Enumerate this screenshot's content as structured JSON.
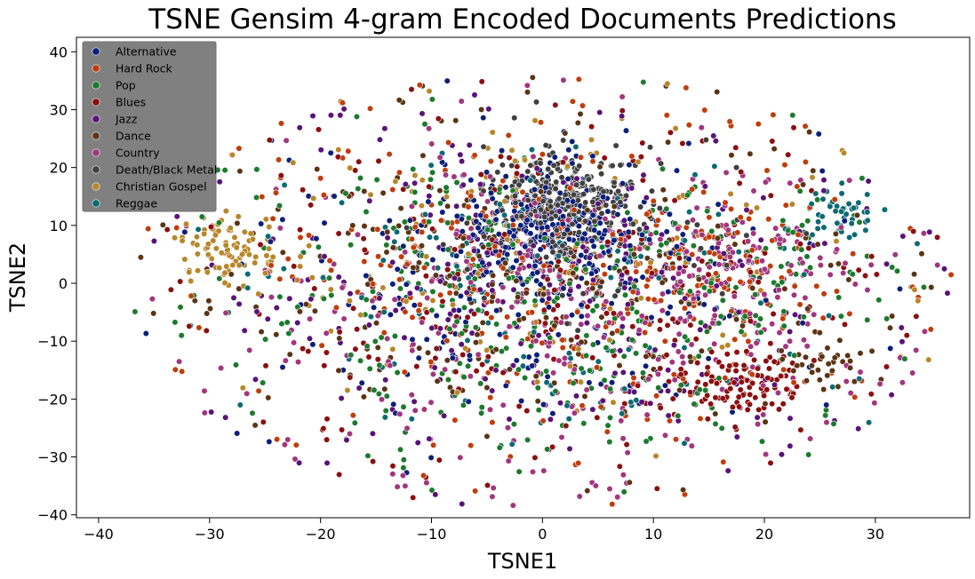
{
  "chart_data": {
    "type": "scatter",
    "title": "TSNE Gensim 4-gram Encoded Documents Predictions",
    "xlabel": "TSNE1",
    "ylabel": "TSNE2",
    "xlim": [
      -42,
      38.5
    ],
    "ylim": [
      -40.5,
      42.5
    ],
    "xticks": [
      -40,
      -30,
      -20,
      -10,
      0,
      10,
      20,
      30
    ],
    "yticks": [
      -40,
      -30,
      -20,
      -10,
      0,
      10,
      20,
      30,
      40
    ],
    "grid": false,
    "legend_position": "top-left",
    "series": [
      {
        "name": "Alternative",
        "color": "#0b1f7a",
        "clusters": [
          {
            "cx": 1,
            "cy": 10,
            "sx": 4,
            "sy": 5,
            "n": 240
          },
          {
            "cx": -1,
            "cy": 0,
            "sx": 12,
            "sy": 13,
            "n": 220
          }
        ]
      },
      {
        "name": "Hard Rock",
        "color": "#c03d0b",
        "clusters": [
          {
            "cx": 0,
            "cy": 0,
            "sx": 15,
            "sy": 15,
            "n": 300
          },
          {
            "cx": 15,
            "cy": 3,
            "sx": 6,
            "sy": 7,
            "n": 80
          }
        ]
      },
      {
        "name": "Pop",
        "color": "#1c7a2c",
        "clusters": [
          {
            "cx": -2,
            "cy": -3,
            "sx": 13,
            "sy": 14,
            "n": 330
          },
          {
            "cx": 20,
            "cy": 0,
            "sx": 5,
            "sy": 8,
            "n": 70
          }
        ]
      },
      {
        "name": "Blues",
        "color": "#8b0f0f",
        "clusters": [
          {
            "cx": 19,
            "cy": -18,
            "sx": 2.5,
            "sy": 2.5,
            "n": 60
          },
          {
            "cx": 15,
            "cy": -15,
            "sx": 4,
            "sy": 4,
            "n": 60
          },
          {
            "cx": 0,
            "cy": 0,
            "sx": 15,
            "sy": 15,
            "n": 260
          }
        ]
      },
      {
        "name": "Jazz",
        "color": "#5a1278",
        "clusters": [
          {
            "cx": 0,
            "cy": 0,
            "sx": 16,
            "sy": 15,
            "n": 300
          }
        ]
      },
      {
        "name": "Dance",
        "color": "#5a3414",
        "clusters": [
          {
            "cx": 0,
            "cy": 0,
            "sx": 15,
            "sy": 14,
            "n": 280
          },
          {
            "cx": 26,
            "cy": -14,
            "sx": 2,
            "sy": 2,
            "n": 30
          }
        ]
      },
      {
        "name": "Country",
        "color": "#a3357f",
        "clusters": [
          {
            "cx": 2,
            "cy": -5,
            "sx": 14,
            "sy": 14,
            "n": 340
          },
          {
            "cx": 18,
            "cy": 3,
            "sx": 5,
            "sy": 5,
            "n": 90
          }
        ]
      },
      {
        "name": "Death/Black Metal",
        "color": "#3f3f3f",
        "clusters": [
          {
            "cx": 2,
            "cy": 15,
            "sx": 3,
            "sy": 4,
            "n": 220
          },
          {
            "cx": 5,
            "cy": 8,
            "sx": 8,
            "sy": 8,
            "n": 80
          }
        ]
      },
      {
        "name": "Christian Gospel",
        "color": "#b8862a",
        "clusters": [
          {
            "cx": -29,
            "cy": 7,
            "sx": 2,
            "sy": 2.5,
            "n": 60
          },
          {
            "cx": -26,
            "cy": 4,
            "sx": 2,
            "sy": 2,
            "n": 30
          },
          {
            "cx": 0,
            "cy": 5,
            "sx": 14,
            "sy": 14,
            "n": 120
          }
        ]
      },
      {
        "name": "Reggae",
        "color": "#0c6a74",
        "clusters": [
          {
            "cx": 27,
            "cy": 12,
            "sx": 1.5,
            "sy": 2,
            "n": 40
          },
          {
            "cx": 0,
            "cy": 0,
            "sx": 14,
            "sy": 14,
            "n": 140
          }
        ]
      }
    ]
  }
}
